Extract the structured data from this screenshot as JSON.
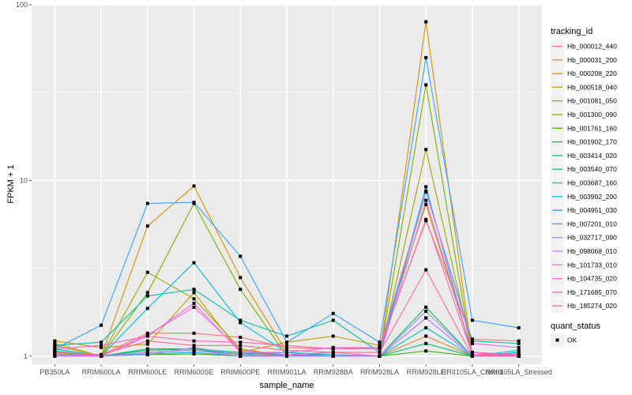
{
  "chart_data": {
    "type": "line",
    "title": "",
    "xlabel": "sample_name",
    "ylabel": "FPKM + 1",
    "y_scale": "log10",
    "ylim": [
      0.9,
      100
    ],
    "y_ticks": [
      1,
      10,
      100
    ],
    "y_tick_labels": [
      "1",
      "10",
      "100"
    ],
    "grid": true,
    "categories": [
      "PB350LA",
      "RRIM600LA",
      "RRIM600LE",
      "RRIM600SE",
      "RRIM600PE",
      "RRIM901LA",
      "RRIM928BA",
      "RRIM928LA",
      "RRIM928LE",
      "RRII105LA_Control",
      "RRII105LA_Stressed"
    ],
    "legend": {
      "position": "right",
      "color_title": "tracking_id",
      "shape_title": "quant_status",
      "shape_entries": [
        "OK"
      ]
    },
    "series": [
      {
        "name": "Hb_000012_440",
        "color": "#F8766D",
        "values": [
          1.05,
          1.02,
          1.35,
          1.35,
          1.28,
          1.12,
          1.1,
          1.12,
          5.9,
          1.25,
          1.22
        ]
      },
      {
        "name": "Hb_000031_200",
        "color": "#EA8331",
        "values": [
          1.02,
          1.0,
          1.05,
          1.08,
          1.02,
          1.02,
          1.0,
          1.0,
          1.3,
          1.0,
          1.0
        ]
      },
      {
        "name": "Hb_000208_220",
        "color": "#D89000",
        "values": [
          1.15,
          1.0,
          5.5,
          9.3,
          2.8,
          1.05,
          1.0,
          1.0,
          80,
          1.0,
          1.0
        ]
      },
      {
        "name": "Hb_000518_040",
        "color": "#C09B00",
        "values": [
          1.22,
          1.12,
          1.17,
          2.3,
          1.05,
          1.2,
          1.3,
          1.15,
          7.3,
          1.05,
          1.02
        ]
      },
      {
        "name": "Hb_001081_050",
        "color": "#A3A500",
        "values": [
          1.18,
          1.0,
          3.0,
          2.12,
          1.1,
          1.0,
          1.0,
          1.0,
          15,
          1.05,
          1.0
        ]
      },
      {
        "name": "Hb_001300_090",
        "color": "#7CAE00",
        "values": [
          1.1,
          1.0,
          2.3,
          7.4,
          2.4,
          1.0,
          1.0,
          1.0,
          35,
          1.0,
          1.0
        ]
      },
      {
        "name": "Hb_001761_160",
        "color": "#39B600",
        "values": [
          1.03,
          1.0,
          1.02,
          1.03,
          1.0,
          1.0,
          1.0,
          1.0,
          1.07,
          1.0,
          1.0
        ]
      },
      {
        "name": "Hb_001902_170",
        "color": "#00BB4E",
        "values": [
          1.05,
          1.0,
          1.08,
          1.1,
          1.03,
          1.0,
          1.0,
          1.0,
          1.9,
          1.0,
          1.0
        ]
      },
      {
        "name": "Hb_003414_020",
        "color": "#00BF7D",
        "values": [
          1.07,
          1.0,
          1.1,
          1.1,
          1.05,
          1.02,
          1.0,
          1.0,
          1.18,
          1.0,
          1.0
        ]
      },
      {
        "name": "Hb_003540_070",
        "color": "#00C1A3",
        "values": [
          1.15,
          1.2,
          2.2,
          2.4,
          1.6,
          1.3,
          1.6,
          1.05,
          8.6,
          1.22,
          1.18
        ]
      },
      {
        "name": "Hb_003687_160",
        "color": "#00BFC4",
        "values": [
          1.05,
          1.0,
          1.05,
          1.08,
          1.03,
          1.05,
          1.02,
          1.0,
          1.45,
          1.0,
          1.05
        ]
      },
      {
        "name": "Hb_003992_200",
        "color": "#00BAE0",
        "values": [
          1.1,
          1.0,
          1.87,
          3.4,
          1.55,
          1.05,
          1.0,
          1.0,
          9.2,
          1.0,
          1.02
        ]
      },
      {
        "name": "Hb_004951_030",
        "color": "#00B0F6",
        "values": [
          1.02,
          1.0,
          1.03,
          1.05,
          1.0,
          1.0,
          1.0,
          1.0,
          1.65,
          1.0,
          1.08
        ]
      },
      {
        "name": "Hb_007201_010",
        "color": "#35A2FF",
        "values": [
          1.1,
          1.5,
          7.4,
          7.5,
          3.7,
          1.2,
          1.75,
          1.2,
          50,
          1.6,
          1.45
        ]
      },
      {
        "name": "Hb_032717_090",
        "color": "#9590FF",
        "values": [
          1.0,
          1.0,
          1.02,
          1.12,
          1.02,
          1.0,
          1.0,
          1.0,
          1.8,
          1.0,
          1.0
        ]
      },
      {
        "name": "Hb_098068_010",
        "color": "#C77CFF",
        "values": [
          1.0,
          1.0,
          1.05,
          1.08,
          1.0,
          1.0,
          1.0,
          1.0,
          1.65,
          1.0,
          1.0
        ]
      },
      {
        "name": "Hb_101733_010",
        "color": "#E76BF3",
        "values": [
          1.02,
          1.0,
          1.3,
          2.0,
          1.05,
          1.05,
          1.12,
          1.12,
          8.7,
          1.18,
          1.12
        ]
      },
      {
        "name": "Hb_104735_020",
        "color": "#FA62DB",
        "values": [
          1.05,
          1.0,
          1.32,
          1.9,
          1.08,
          1.02,
          1.05,
          1.0,
          7.7,
          1.05,
          1.02
        ]
      },
      {
        "name": "Hb_171685_070",
        "color": "#FF62BC",
        "values": [
          1.1,
          1.15,
          1.3,
          1.22,
          1.2,
          1.15,
          1.1,
          1.1,
          6.0,
          1.02,
          1.03
        ]
      },
      {
        "name": "Hb_185274_020",
        "color": "#FF6C91",
        "values": [
          1.05,
          1.02,
          1.22,
          1.15,
          1.15,
          1.08,
          1.05,
          1.05,
          3.1,
          1.0,
          1.0
        ]
      }
    ]
  }
}
